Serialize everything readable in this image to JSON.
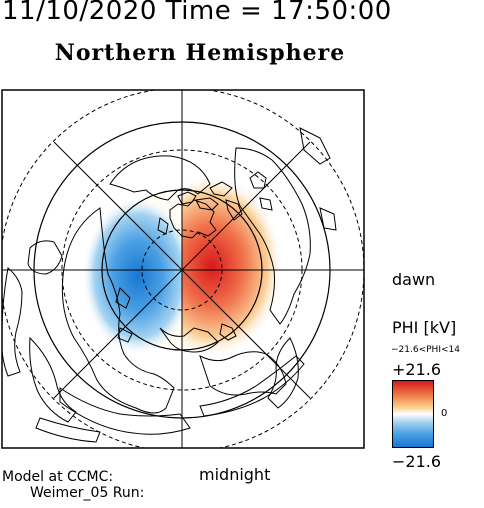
{
  "header": {
    "date_time": "11/10/2020  Time = 17:50:00"
  },
  "title": "Northern Hemisphere",
  "labels": {
    "dawn": "dawn",
    "midnight": "midnight"
  },
  "colorbar": {
    "title": "PHI [kV]",
    "range_text": "−21.6<PHI<14",
    "max_label": "+21.6",
    "zero_label": "0",
    "min_label": "−21.6",
    "colors": {
      "max": "#d7191c",
      "mid": "#ffffff",
      "min": "#1976d2"
    }
  },
  "footer": {
    "model_label": "Model at CCMC:",
    "run_label": "Weimer_05 Run:"
  }
}
